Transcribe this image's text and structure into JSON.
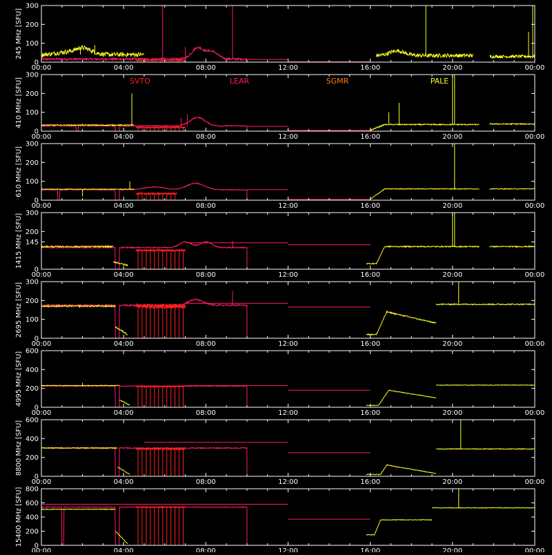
{
  "chart_data": {
    "type": "line",
    "x_tick_labels": [
      "00:00",
      "04:00",
      "08:00",
      "12:00",
      "16:00",
      "20:00",
      "00:00"
    ],
    "xlim_hours": [
      0,
      24
    ],
    "grid": false,
    "legend": [
      {
        "name": "SVTO",
        "color": "#ff2020",
        "placement": "top-left"
      },
      {
        "name": "LEAR",
        "color": "#ff1a6e",
        "placement": "top-center-left"
      },
      {
        "name": "SGMR",
        "color": "#ff7a1a",
        "placement": "top-center-right"
      },
      {
        "name": "PALE",
        "color": "#ffff20",
        "placement": "top-right"
      }
    ],
    "colors": {
      "svto": "#ff2020",
      "lear": "#ff1a6e",
      "sgmr": "#ff7a1a",
      "pale": "#ffff20",
      "axes": "#ffffff",
      "background": "#000000"
    },
    "panels": [
      {
        "ylabel": "245 MHz [SFU]",
        "ylim": [
          0,
          300
        ],
        "yticks": [
          "0",
          "100",
          "200",
          "300"
        ],
        "lear": {
          "start": 0,
          "end": 10,
          "base": 16,
          "noise": 6,
          "dropouts": [],
          "bumps": [
            [
              7.6,
              60,
              0.4
            ],
            [
              8.3,
              40,
              0.4
            ]
          ],
          "spikes": [
            [
              5.9,
              300
            ],
            [
              9.3,
              300
            ],
            [
              7.0,
              80
            ]
          ]
        },
        "svto": {
          "start": 4.6,
          "end": 7,
          "base": 10,
          "noise": 3,
          "comb": false,
          "steps": []
        },
        "sgmr": {
          "segments": [
            [
              10,
              12,
              14
            ],
            [
              12,
              16,
              2
            ]
          ]
        },
        "pale": [
          {
            "start": 0,
            "end": 5,
            "base": 40,
            "noise": 12,
            "bumps": [
              [
                2.0,
                35,
                0.6
              ],
              [
                1.0,
                10,
                0.5
              ]
            ],
            "spikes": [
              [
                2.6,
                90
              ],
              [
                1.9,
                80
              ]
            ]
          },
          {
            "start": 16.3,
            "end": 21,
            "base": 35,
            "noise": 10,
            "bumps": [
              [
                17.3,
                25,
                0.5
              ]
            ],
            "spikes": [
              [
                18.7,
                300
              ]
            ]
          },
          {
            "start": 21.8,
            "end": 24,
            "base": 30,
            "noise": 8,
            "bumps": [],
            "spikes": [
              [
                23.9,
                300
              ],
              [
                23.7,
                160
              ]
            ]
          }
        ]
      },
      {
        "ylabel": "410 MHz [SFU]",
        "ylim": [
          0,
          300
        ],
        "yticks": [
          "0",
          "100",
          "200",
          "300"
        ],
        "lear": {
          "start": 0,
          "end": 10,
          "base": 28,
          "noise": 3,
          "dropouts": [
            [
              1.7,
              1.8
            ],
            [
              3.6,
              3.8
            ]
          ],
          "bumps": [
            [
              7.6,
              45,
              0.5
            ]
          ],
          "spikes": [
            [
              7.1,
              90
            ],
            [
              6.8,
              70
            ]
          ]
        },
        "svto": {
          "start": 4.6,
          "end": 7,
          "base": 20,
          "noise": 3,
          "comb": true,
          "steps": []
        },
        "sgmr": {
          "segments": [
            [
              10,
              12,
              25
            ],
            [
              12,
              16,
              4
            ]
          ]
        },
        "pale": [
          {
            "start": 0,
            "end": 4.5,
            "base": 32,
            "noise": 3,
            "bumps": [],
            "spikes": [
              [
                4.4,
                200
              ],
              [
                2.0,
                40
              ]
            ]
          },
          {
            "start": 16.0,
            "end": 21.3,
            "base": 35,
            "noise": 3,
            "rampFrom": 16.0,
            "rampTo": 16.7,
            "bumps": [],
            "spikes": [
              [
                16.9,
                100
              ],
              [
                17.4,
                150
              ],
              [
                20.1,
                300
              ],
              [
                20.0,
                300
              ]
            ]
          },
          {
            "start": 21.8,
            "end": 24,
            "base": 38,
            "noise": 3,
            "bumps": [],
            "spikes": []
          }
        ]
      },
      {
        "ylabel": "610 MHz [SFU]",
        "ylim": [
          0,
          300
        ],
        "yticks": [
          "0",
          "100",
          "200",
          "300"
        ],
        "lear": {
          "start": 0,
          "end": 10,
          "base": 55,
          "noise": 2,
          "dropouts": [
            [
              0.8,
              0.9
            ],
            [
              3.6,
              3.8
            ]
          ],
          "bumps": [
            [
              7.5,
              35,
              0.6
            ],
            [
              5.5,
              15,
              0.7
            ]
          ],
          "spikes": []
        },
        "svto": {
          "start": 4.6,
          "end": 6.6,
          "base": 35,
          "noise": 4,
          "comb": true,
          "steps": []
        },
        "sgmr": {
          "segments": [
            [
              10,
              12,
              56
            ],
            [
              12,
              16,
              4
            ]
          ]
        },
        "pale": [
          {
            "start": 0,
            "end": 4.5,
            "base": 58,
            "noise": 2,
            "bumps": [],
            "spikes": [
              [
                4.3,
                100
              ],
              [
                2.0,
                20
              ]
            ]
          },
          {
            "start": 16.0,
            "end": 21.3,
            "base": 60,
            "noise": 2,
            "rampFrom": 16.0,
            "rampTo": 16.7,
            "bumps": [],
            "spikes": [
              [
                20.1,
                300
              ]
            ]
          },
          {
            "start": 21.8,
            "end": 24,
            "base": 60,
            "noise": 2,
            "bumps": [],
            "spikes": []
          }
        ]
      },
      {
        "ylabel": "1415 MHz [SFU]",
        "ylim": [
          0,
          300
        ],
        "yticks": [
          "0",
          "145",
          "200",
          "300"
        ],
        "lear": {
          "start": 0,
          "end": 10,
          "base": 115,
          "noise": 3,
          "dropouts": [
            [
              3.6,
              3.8
            ]
          ],
          "bumps": [
            [
              7.0,
              30,
              0.4
            ],
            [
              8.0,
              30,
              0.4
            ]
          ],
          "spikes": [
            [
              9.3,
              150
            ]
          ]
        },
        "svto": {
          "start": 4.6,
          "end": 7,
          "base": 100,
          "noise": 4,
          "comb": true,
          "steps": []
        },
        "sgmr": {
          "segments": [
            [
              7,
              12,
              140
            ],
            [
              12,
              16,
              130
            ]
          ]
        },
        "pale": [
          {
            "start": 0,
            "end": 3.5,
            "base": 120,
            "noise": 4,
            "bumps": [],
            "spikes": []
          },
          {
            "start": 3.5,
            "end": 4.2,
            "base": 40,
            "noise": 4,
            "dropTo": 20,
            "bumps": [],
            "spikes": []
          },
          {
            "start": 15.8,
            "end": 21.3,
            "base": 120,
            "noise": 3,
            "rampFrom": 16.3,
            "rampTo": 16.7,
            "preLevel": 30,
            "bumps": [],
            "spikes": [
              [
                20.1,
                300
              ],
              [
                20.0,
                300
              ]
            ]
          },
          {
            "start": 21.8,
            "end": 24,
            "base": 120,
            "noise": 3,
            "bumps": [],
            "spikes": []
          }
        ]
      },
      {
        "ylabel": "2695 MHz [SFU]",
        "ylim": [
          0,
          300
        ],
        "yticks": [
          "0",
          "100",
          "200",
          "300"
        ],
        "lear": {
          "start": 0,
          "end": 10,
          "base": 175,
          "noise": 4,
          "dropouts": [
            [
              3.6,
              3.8
            ]
          ],
          "bumps": [
            [
              7.5,
              30,
              0.5
            ]
          ],
          "spikes": [
            [
              9.3,
              250
            ]
          ]
        },
        "svto": {
          "start": 4.6,
          "end": 7,
          "base": 170,
          "noise": 12,
          "comb": true,
          "steps": []
        },
        "sgmr": {
          "segments": [
            [
              7,
              12,
              185
            ],
            [
              12,
              16,
              165
            ]
          ]
        },
        "pale": [
          {
            "start": 0,
            "end": 3.6,
            "base": 170,
            "noise": 4,
            "bumps": [],
            "spikes": []
          },
          {
            "start": 3.6,
            "end": 4.2,
            "base": 60,
            "noise": 4,
            "dropTo": 20,
            "bumps": [],
            "spikes": []
          },
          {
            "start": 15.8,
            "end": 19.2,
            "base": 140,
            "noise": 3,
            "rampFrom": 16.3,
            "rampTo": 16.8,
            "preLevel": 20,
            "decay": 60,
            "bumps": [],
            "spikes": []
          },
          {
            "start": 19.2,
            "end": 24,
            "base": 180,
            "noise": 3,
            "bumps": [],
            "spikes": [
              [
                20.3,
                300
              ]
            ]
          }
        ]
      },
      {
        "ylabel": "4995 MHz [SFU]",
        "ylim": [
          0,
          600
        ],
        "yticks": [
          "0",
          "200",
          "400",
          "600"
        ],
        "lear": {
          "start": 0,
          "end": 10,
          "base": 225,
          "noise": 4,
          "dropouts": [
            [
              3.6,
              3.8
            ]
          ],
          "bumps": [],
          "spikes": []
        },
        "svto": {
          "start": 4.6,
          "end": 7,
          "base": 220,
          "noise": 5,
          "comb": true,
          "steps": []
        },
        "sgmr": {
          "segments": [
            [
              7,
              12,
              230
            ],
            [
              12,
              16,
              180
            ]
          ]
        },
        "pale": [
          {
            "start": 0,
            "end": 3.8,
            "base": 230,
            "noise": 4,
            "bumps": [],
            "spikes": [
              [
                2.0,
                260
              ]
            ]
          },
          {
            "start": 3.8,
            "end": 4.3,
            "base": 80,
            "noise": 4,
            "dropTo": 20,
            "bumps": [],
            "spikes": []
          },
          {
            "start": 15.8,
            "end": 19.2,
            "base": 180,
            "noise": 3,
            "rampFrom": 16.4,
            "rampTo": 16.9,
            "preLevel": 20,
            "decay": 80,
            "bumps": [],
            "spikes": []
          },
          {
            "start": 19.2,
            "end": 24,
            "base": 235,
            "noise": 3,
            "bumps": [],
            "spikes": []
          }
        ]
      },
      {
        "ylabel": "8800 MHz [SFU]",
        "ylim": [
          0,
          600
        ],
        "yticks": [
          "0",
          "200",
          "400",
          "600"
        ],
        "lear": {
          "start": 0,
          "end": 10,
          "base": 300,
          "noise": 5,
          "dropouts": [
            [
              3.6,
              3.8
            ]
          ],
          "bumps": [],
          "spikes": []
        },
        "svto": {
          "start": 4.6,
          "end": 7,
          "base": 290,
          "noise": 6,
          "comb": true,
          "steps": []
        },
        "sgmr": {
          "segments": [
            [
              5,
              12,
              360
            ],
            [
              12,
              16,
              250
            ]
          ]
        },
        "pale": [
          {
            "start": 0,
            "end": 3.7,
            "base": 300,
            "noise": 5,
            "bumps": [],
            "spikes": []
          },
          {
            "start": 3.7,
            "end": 4.3,
            "base": 100,
            "noise": 4,
            "dropTo": 20,
            "bumps": [],
            "spikes": []
          },
          {
            "start": 15.8,
            "end": 19.2,
            "base": 120,
            "noise": 3,
            "rampFrom": 16.5,
            "rampTo": 16.8,
            "preLevel": 20,
            "decay": 90,
            "bumps": [],
            "spikes": []
          },
          {
            "start": 19.2,
            "end": 24,
            "base": 290,
            "noise": 4,
            "bumps": [],
            "spikes": [
              [
                20.4,
                600
              ]
            ]
          }
        ]
      },
      {
        "ylabel": "15400 MHz [SFU]",
        "ylim": [
          0,
          800
        ],
        "yticks": [
          "0",
          "200",
          "400",
          "600",
          "800"
        ],
        "lear": {
          "start": 0,
          "end": 10,
          "base": 540,
          "noise": 5,
          "dropouts": [
            [
              1.0,
              1.1
            ],
            [
              3.6,
              3.8
            ]
          ],
          "bumps": [],
          "spikes": []
        },
        "svto": {
          "start": 4.6,
          "end": 7,
          "base": 540,
          "noise": 6,
          "comb": true,
          "steps": []
        },
        "sgmr": {
          "segments": [
            [
              0,
              12,
              580
            ],
            [
              12,
              16,
              370
            ]
          ]
        },
        "pale": [
          {
            "start": 0,
            "end": 3.6,
            "base": 510,
            "noise": 5,
            "bumps": [],
            "spikes": []
          },
          {
            "start": 3.6,
            "end": 4.2,
            "base": 200,
            "noise": 5,
            "dropTo": 20,
            "bumps": [],
            "spikes": []
          },
          {
            "start": 15.8,
            "end": 19.0,
            "base": 360,
            "noise": 4,
            "rampFrom": 16.2,
            "rampTo": 16.5,
            "preLevel": 150,
            "bumps": [],
            "spikes": []
          },
          {
            "start": 19.0,
            "end": 24,
            "base": 530,
            "noise": 4,
            "bumps": [],
            "spikes": [
              [
                20.3,
                800
              ]
            ]
          }
        ]
      }
    ]
  }
}
